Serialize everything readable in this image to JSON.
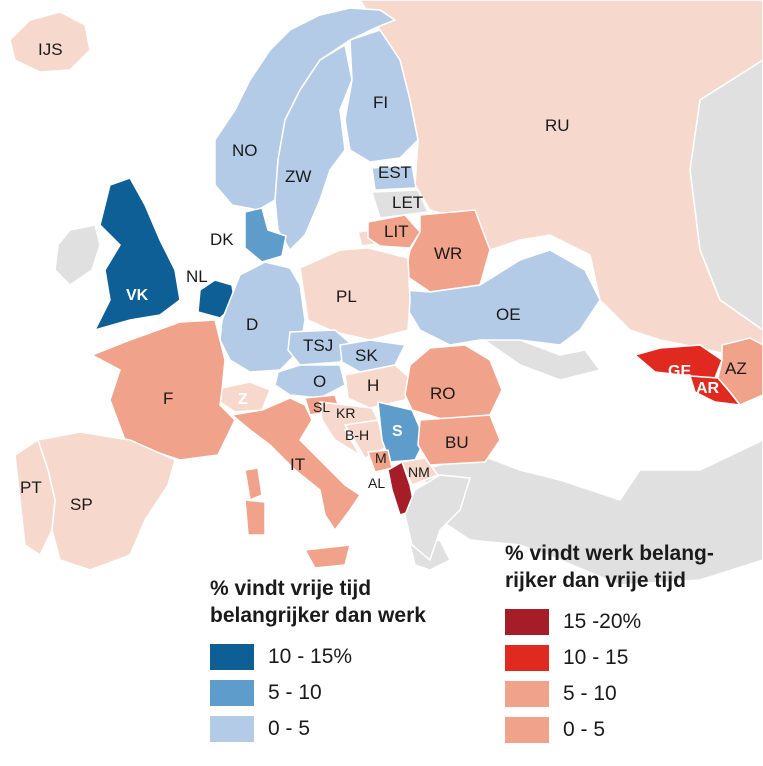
{
  "colors": {
    "sea": "#ffffff",
    "other_land": "#e0e0e0",
    "leisure_high": "#0d5f96",
    "leisure_mid": "#5e9ccc",
    "leisure_low": "#b3cbe6",
    "work_high": "#a51d26",
    "work_mid": "#e02a1f",
    "work_low": "#f0a28a",
    "work_vlow": "#f7d8cc",
    "border": "#ffffff"
  },
  "labels": {
    "IJS": "IJS",
    "NO": "NO",
    "ZW": "ZW",
    "FI": "FI",
    "EST": "EST",
    "LET": "LET",
    "LIT": "LIT",
    "WR": "WR",
    "RU": "RU",
    "DK": "DK",
    "VK": "VK",
    "NL": "NL",
    "PL": "PL",
    "D": "D",
    "OE": "OE",
    "TSJ": "TSJ",
    "SK": "SK",
    "F": "F",
    "Z": "Z",
    "O": "O",
    "H": "H",
    "RO": "RO",
    "SL": "SL",
    "KR": "KR",
    "S": "S",
    "BH": "B-H",
    "BU": "BU",
    "IT": "IT",
    "M": "M",
    "NM": "NM",
    "AL": "AL",
    "PT": "PT",
    "SP": "SP",
    "GE": "GE",
    "AR": "AR",
    "AZ": "AZ"
  },
  "legend_leisure": {
    "title_line1": "% vindt vrije tijd",
    "title_line2": "belangrijker dan werk",
    "items": [
      {
        "label": "10 - 15%",
        "level": "high"
      },
      {
        "label": "5 - 10",
        "level": "mid"
      },
      {
        "label": "0 - 5",
        "level": "low"
      }
    ]
  },
  "legend_work": {
    "title_line1": "% vindt werk belang-",
    "title_line2": "rijker dan vrije tijd",
    "items": [
      {
        "label": "15 -20%",
        "level": "high"
      },
      {
        "label": "10 - 15",
        "level": "mid"
      },
      {
        "label": "5 - 10",
        "level": "low"
      },
      {
        "label": "0 - 5",
        "level": "vlow"
      }
    ]
  }
}
